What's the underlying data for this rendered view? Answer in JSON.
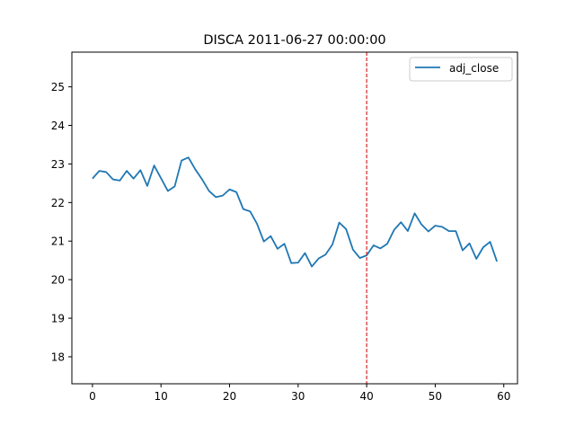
{
  "chart_data": {
    "type": "line",
    "title": "DISCA 2011-06-27 00:00:00",
    "xlabel": "",
    "ylabel": "",
    "xlim": [
      -3,
      62
    ],
    "ylim": [
      17.3,
      25.9
    ],
    "xticks": [
      0,
      10,
      20,
      30,
      40,
      50,
      60
    ],
    "yticks": [
      18,
      19,
      20,
      21,
      22,
      23,
      24,
      25
    ],
    "grid": false,
    "legend_position": "top-right",
    "vline": {
      "x": 40,
      "color": "#d62728",
      "style": "dashed"
    },
    "series": [
      {
        "name": "adj_close",
        "color": "#1f77b4",
        "x": [
          0,
          1,
          2,
          3,
          4,
          5,
          6,
          7,
          8,
          9,
          10,
          11,
          12,
          13,
          14,
          15,
          16,
          17,
          18,
          19,
          20,
          21,
          22,
          23,
          24,
          25,
          26,
          27,
          28,
          29,
          30,
          31,
          32,
          33,
          34,
          35,
          36,
          37,
          38,
          39,
          40,
          41,
          42,
          43,
          44,
          45,
          46,
          47,
          48,
          49,
          50,
          51,
          52,
          53,
          54,
          55,
          56,
          57,
          58,
          59
        ],
        "values": [
          22.62,
          22.82,
          22.79,
          22.6,
          22.57,
          22.82,
          22.62,
          22.84,
          22.43,
          22.96,
          22.63,
          22.3,
          22.42,
          23.09,
          23.17,
          22.86,
          22.6,
          22.3,
          22.14,
          22.18,
          22.34,
          22.27,
          21.83,
          21.77,
          21.45,
          20.99,
          21.13,
          20.8,
          20.93,
          20.43,
          20.44,
          20.69,
          20.34,
          20.55,
          20.65,
          20.91,
          21.48,
          21.31,
          20.78,
          20.56,
          20.63,
          20.89,
          20.81,
          20.93,
          21.29,
          21.49,
          21.26,
          21.72,
          21.43,
          21.25,
          21.4,
          21.37,
          21.26,
          21.26,
          20.76,
          20.94,
          20.54,
          20.84,
          20.98,
          20.47
        ]
      }
    ]
  }
}
